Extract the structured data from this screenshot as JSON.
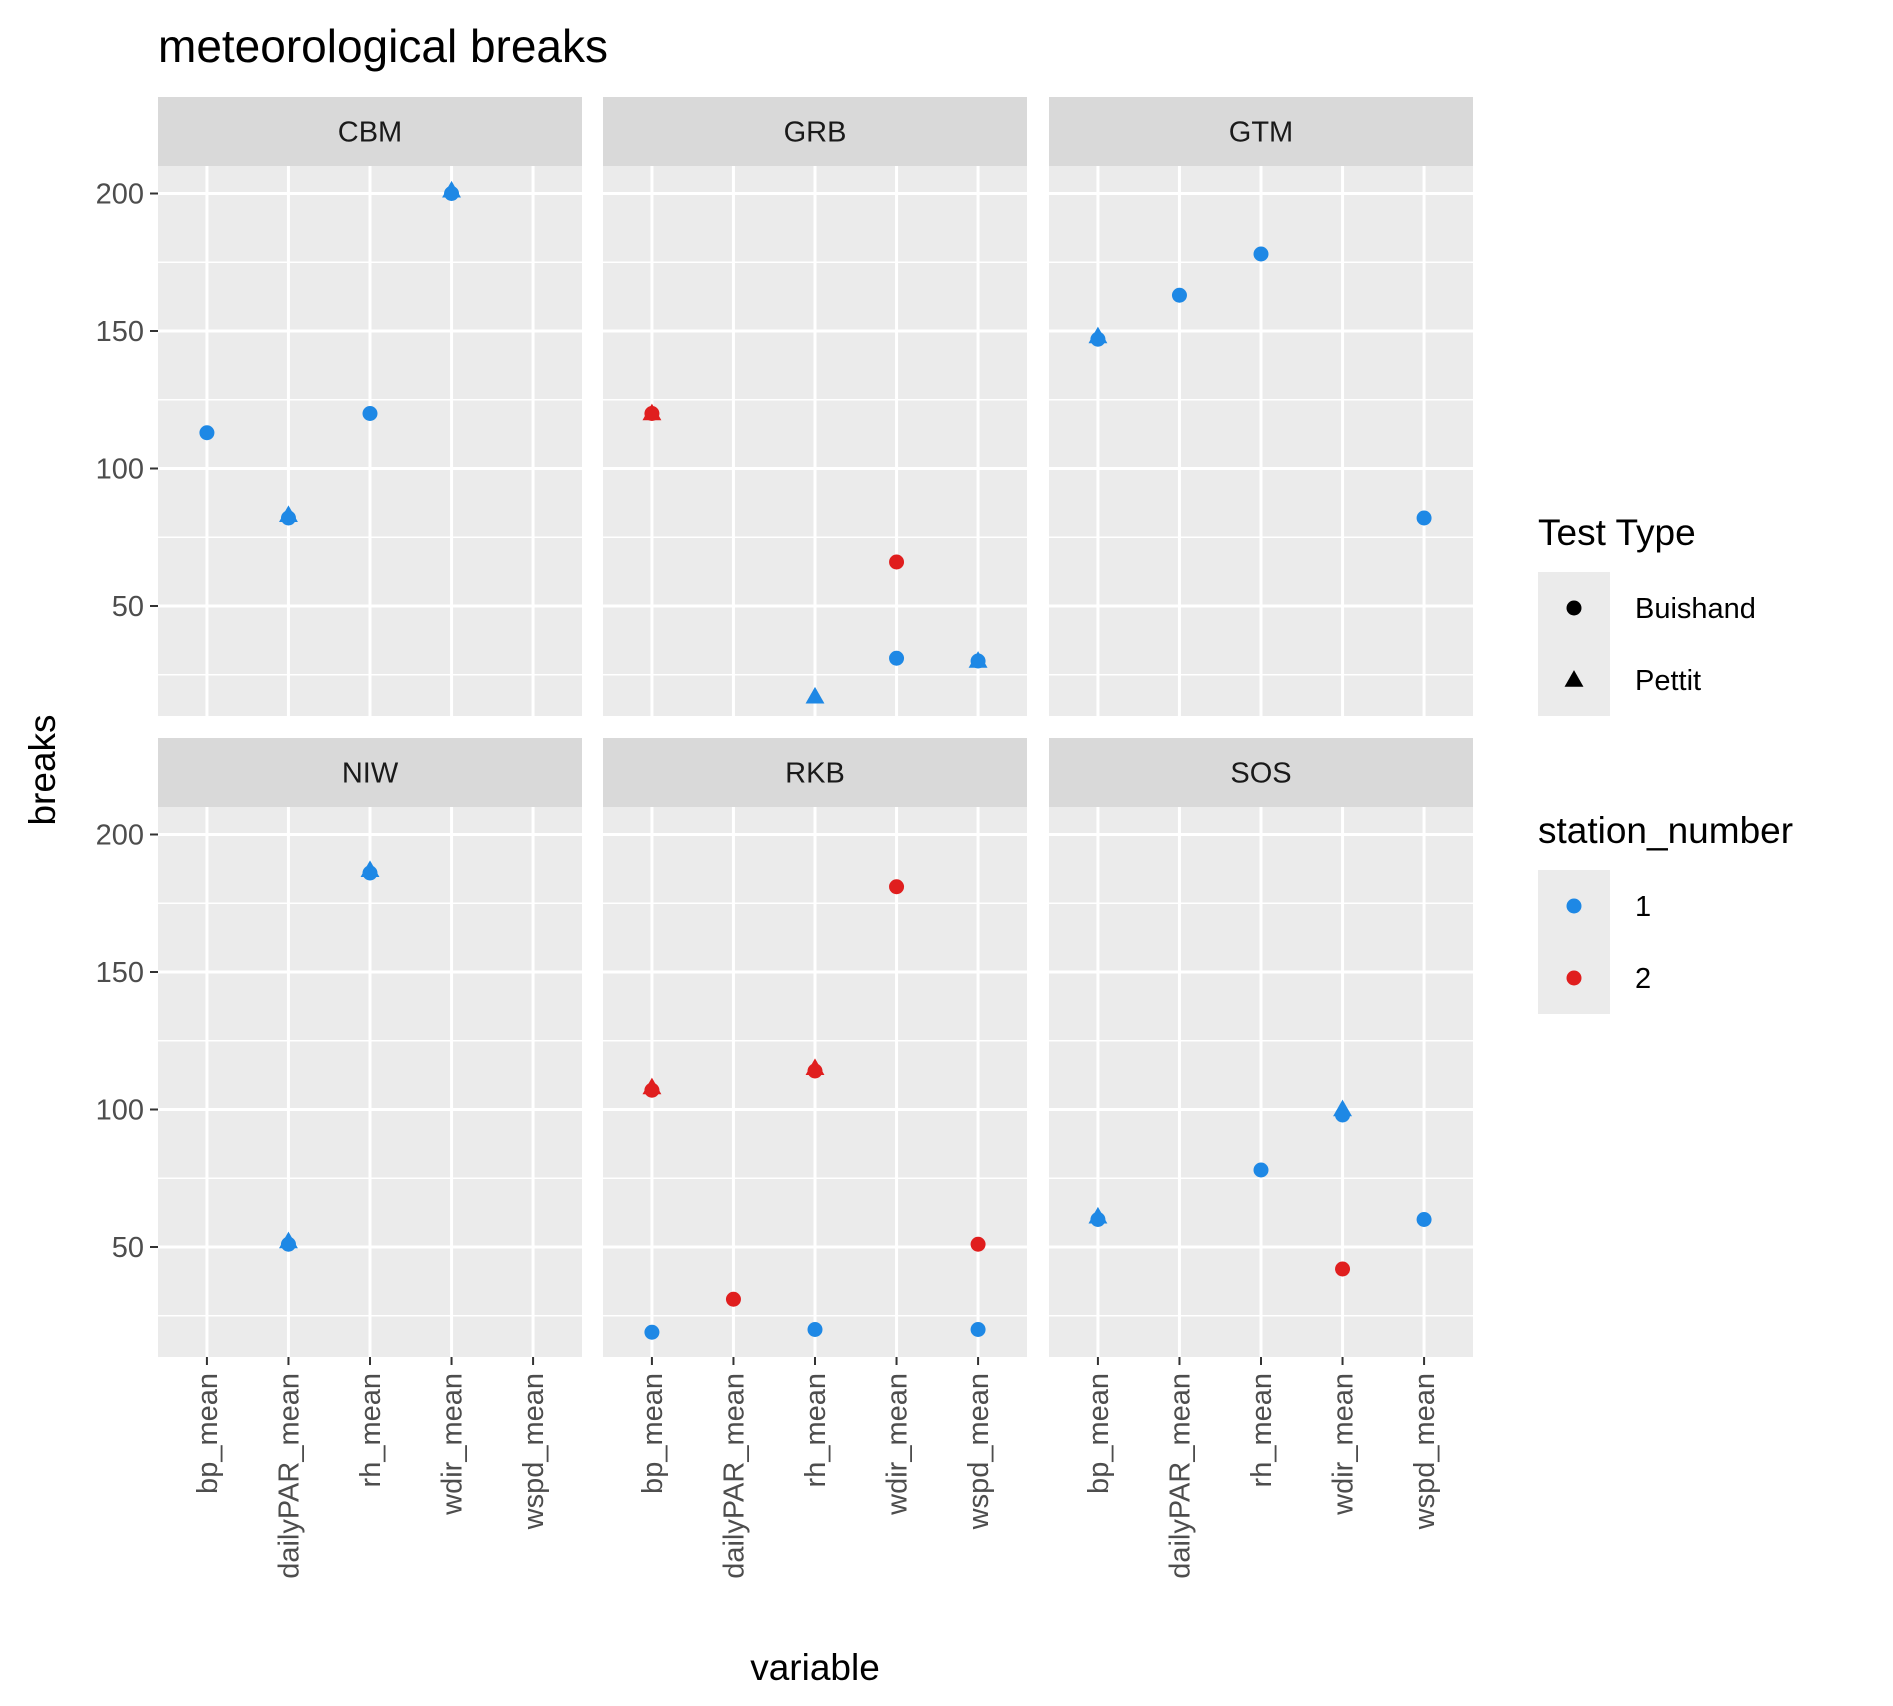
{
  "chart_data": {
    "type": "scatter",
    "title": "meteorological breaks",
    "xlabel": "variable",
    "ylabel": "breaks",
    "x_categories": [
      "bp_mean",
      "dailyPAR_mean",
      "rh_mean",
      "wdir_mean",
      "wspd_mean"
    ],
    "y_ticks": [
      50,
      100,
      150,
      200
    ],
    "ylim": [
      10,
      210
    ],
    "grid": true,
    "colors": {
      "1": "#1e88e5",
      "2": "#e01e1e"
    },
    "panels": [
      {
        "name": "CBM",
        "points": [
          {
            "variable": "bp_mean",
            "breaks": 113,
            "test_type": "Buishand",
            "station_number": "1"
          },
          {
            "variable": "dailyPAR_mean",
            "breaks": 82,
            "test_type": "Buishand",
            "station_number": "1"
          },
          {
            "variable": "dailyPAR_mean",
            "breaks": 83,
            "test_type": "Pettit",
            "station_number": "1"
          },
          {
            "variable": "rh_mean",
            "breaks": 120,
            "test_type": "Buishand",
            "station_number": "1"
          },
          {
            "variable": "wdir_mean",
            "breaks": 200,
            "test_type": "Buishand",
            "station_number": "1"
          },
          {
            "variable": "wdir_mean",
            "breaks": 201,
            "test_type": "Pettit",
            "station_number": "1"
          }
        ]
      },
      {
        "name": "GRB",
        "points": [
          {
            "variable": "bp_mean",
            "breaks": 120,
            "test_type": "Buishand",
            "station_number": "2"
          },
          {
            "variable": "bp_mean",
            "breaks": 120,
            "test_type": "Pettit",
            "station_number": "2"
          },
          {
            "variable": "rh_mean",
            "breaks": 17,
            "test_type": "Pettit",
            "station_number": "1"
          },
          {
            "variable": "wdir_mean",
            "breaks": 66,
            "test_type": "Buishand",
            "station_number": "2"
          },
          {
            "variable": "wdir_mean",
            "breaks": 31,
            "test_type": "Buishand",
            "station_number": "1"
          },
          {
            "variable": "wspd_mean",
            "breaks": 30,
            "test_type": "Buishand",
            "station_number": "1"
          },
          {
            "variable": "wspd_mean",
            "breaks": 30,
            "test_type": "Pettit",
            "station_number": "1"
          }
        ]
      },
      {
        "name": "GTM",
        "points": [
          {
            "variable": "bp_mean",
            "breaks": 147,
            "test_type": "Buishand",
            "station_number": "1"
          },
          {
            "variable": "bp_mean",
            "breaks": 148,
            "test_type": "Pettit",
            "station_number": "1"
          },
          {
            "variable": "dailyPAR_mean",
            "breaks": 163,
            "test_type": "Buishand",
            "station_number": "1"
          },
          {
            "variable": "rh_mean",
            "breaks": 178,
            "test_type": "Buishand",
            "station_number": "1"
          },
          {
            "variable": "wspd_mean",
            "breaks": 82,
            "test_type": "Buishand",
            "station_number": "1"
          }
        ]
      },
      {
        "name": "NIW",
        "points": [
          {
            "variable": "dailyPAR_mean",
            "breaks": 51,
            "test_type": "Buishand",
            "station_number": "1"
          },
          {
            "variable": "dailyPAR_mean",
            "breaks": 52,
            "test_type": "Pettit",
            "station_number": "1"
          },
          {
            "variable": "rh_mean",
            "breaks": 186,
            "test_type": "Buishand",
            "station_number": "1"
          },
          {
            "variable": "rh_mean",
            "breaks": 187,
            "test_type": "Pettit",
            "station_number": "1"
          }
        ]
      },
      {
        "name": "RKB",
        "points": [
          {
            "variable": "bp_mean",
            "breaks": 107,
            "test_type": "Buishand",
            "station_number": "2"
          },
          {
            "variable": "bp_mean",
            "breaks": 108,
            "test_type": "Pettit",
            "station_number": "2"
          },
          {
            "variable": "bp_mean",
            "breaks": 19,
            "test_type": "Buishand",
            "station_number": "1"
          },
          {
            "variable": "dailyPAR_mean",
            "breaks": 31,
            "test_type": "Buishand",
            "station_number": "2"
          },
          {
            "variable": "rh_mean",
            "breaks": 114,
            "test_type": "Buishand",
            "station_number": "2"
          },
          {
            "variable": "rh_mean",
            "breaks": 115,
            "test_type": "Pettit",
            "station_number": "2"
          },
          {
            "variable": "rh_mean",
            "breaks": 20,
            "test_type": "Buishand",
            "station_number": "1"
          },
          {
            "variable": "wdir_mean",
            "breaks": 181,
            "test_type": "Buishand",
            "station_number": "2"
          },
          {
            "variable": "wspd_mean",
            "breaks": 51,
            "test_type": "Buishand",
            "station_number": "2"
          },
          {
            "variable": "wspd_mean",
            "breaks": 20,
            "test_type": "Buishand",
            "station_number": "1"
          }
        ]
      },
      {
        "name": "SOS",
        "points": [
          {
            "variable": "bp_mean",
            "breaks": 60,
            "test_type": "Buishand",
            "station_number": "1"
          },
          {
            "variable": "bp_mean",
            "breaks": 61,
            "test_type": "Pettit",
            "station_number": "1"
          },
          {
            "variable": "rh_mean",
            "breaks": 78,
            "test_type": "Buishand",
            "station_number": "1"
          },
          {
            "variable": "wdir_mean",
            "breaks": 98,
            "test_type": "Buishand",
            "station_number": "1"
          },
          {
            "variable": "wdir_mean",
            "breaks": 100,
            "test_type": "Pettit",
            "station_number": "1"
          },
          {
            "variable": "wdir_mean",
            "breaks": 42,
            "test_type": "Buishand",
            "station_number": "2"
          },
          {
            "variable": "wspd_mean",
            "breaks": 60,
            "test_type": "Buishand",
            "station_number": "1"
          }
        ]
      }
    ],
    "legends": [
      {
        "title": "Test Type",
        "entries": [
          {
            "label": "Buishand",
            "shape": "circle"
          },
          {
            "label": "Pettit",
            "shape": "triangle"
          }
        ]
      },
      {
        "title": "station_number",
        "entries": [
          {
            "label": "1",
            "color": "#1e88e5"
          },
          {
            "label": "2",
            "color": "#e01e1e"
          }
        ]
      }
    ],
    "legend_position": "right"
  }
}
